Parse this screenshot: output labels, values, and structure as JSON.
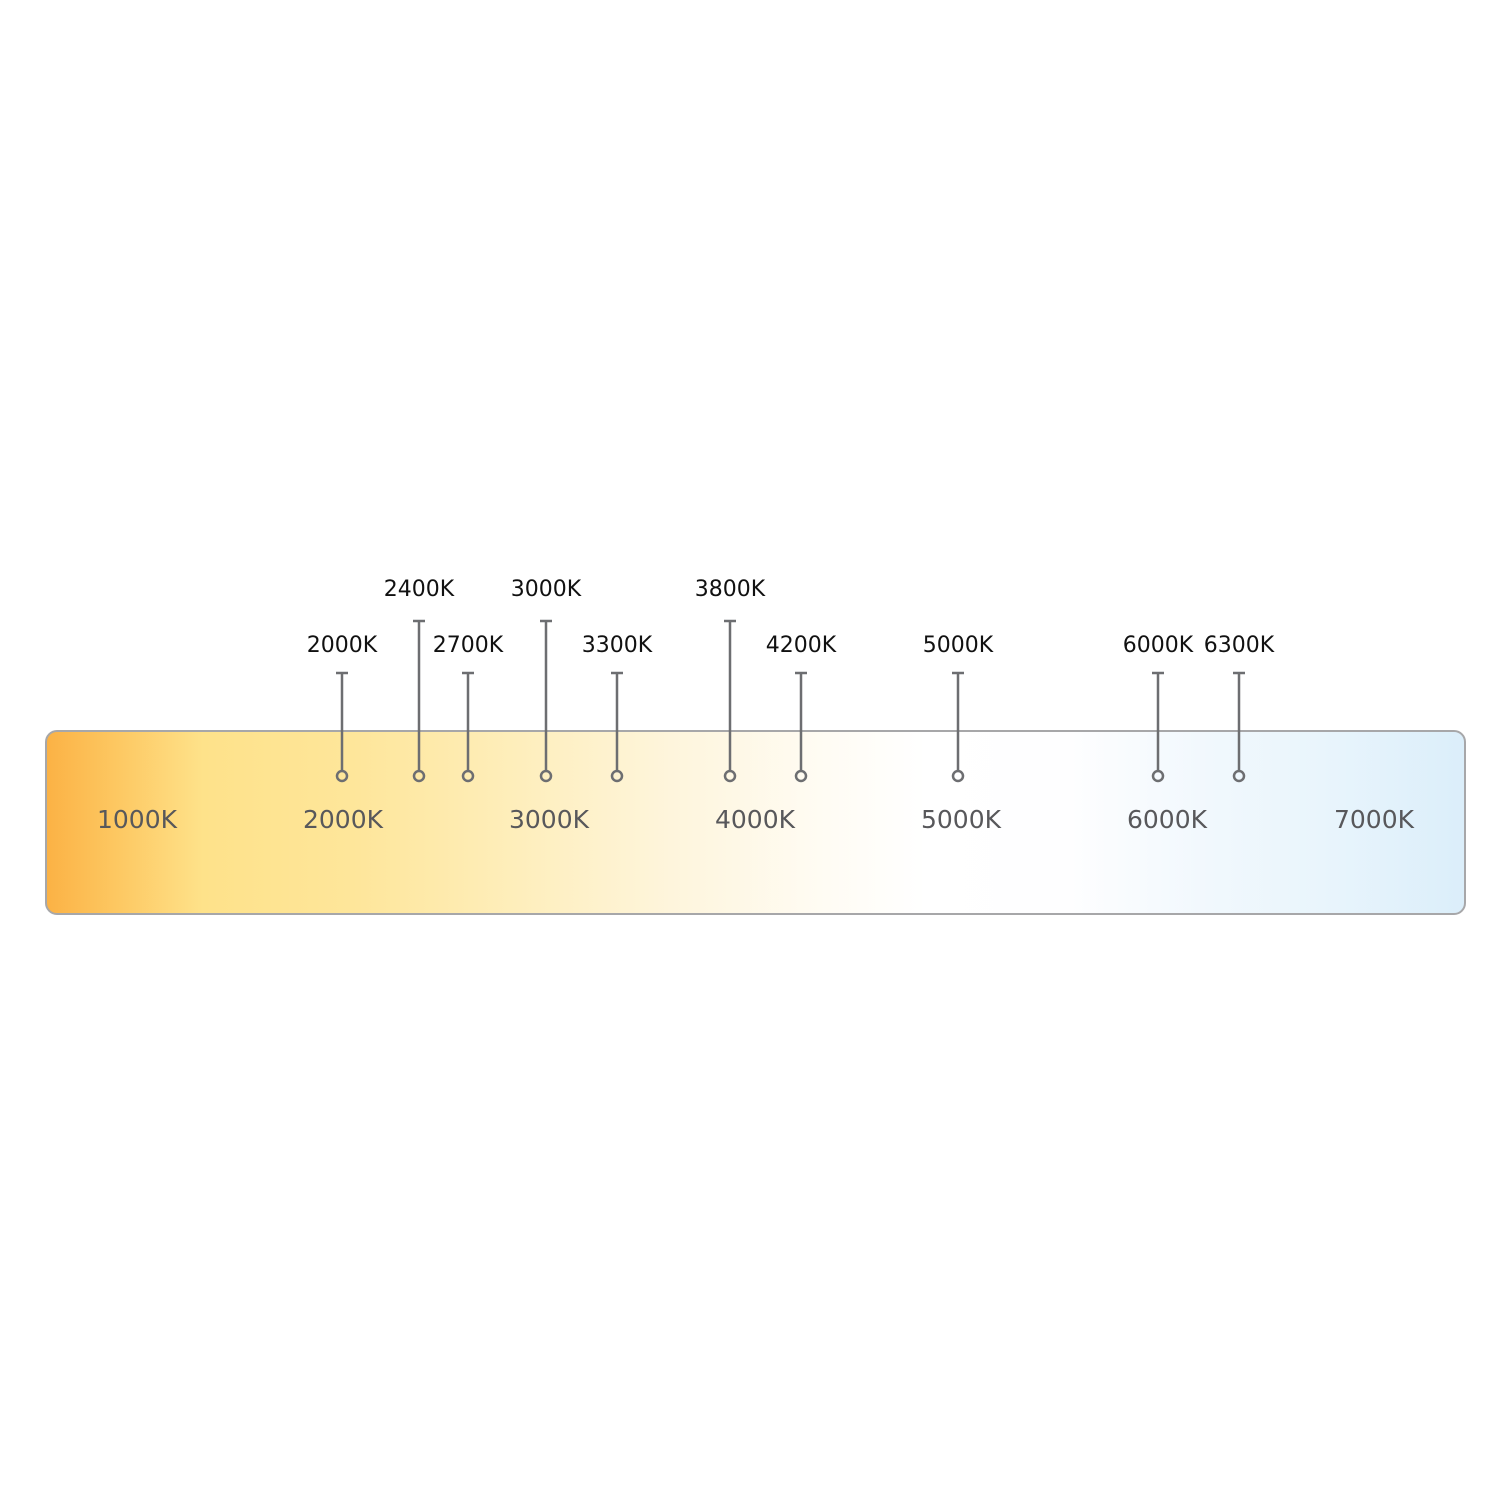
{
  "scale_labels": [
    "1000K",
    "2000K",
    "3000K",
    "4000K",
    "5000K",
    "6000K",
    "7000K"
  ],
  "markers": [
    {
      "label": "2000K",
      "tall": false
    },
    {
      "label": "2400K",
      "tall": true
    },
    {
      "label": "2700K",
      "tall": false
    },
    {
      "label": "3000K",
      "tall": true
    },
    {
      "label": "3300K",
      "tall": false
    },
    {
      "label": "3800K",
      "tall": true
    },
    {
      "label": "4200K",
      "tall": false
    },
    {
      "label": "5000K",
      "tall": false
    },
    {
      "label": "6000K",
      "tall": false
    },
    {
      "label": "6300K",
      "tall": false
    }
  ],
  "colors": {
    "warm": "#fbb245",
    "neutral": "#ffffff",
    "cool": "#dbeefa",
    "pin": "#6d6e71"
  }
}
